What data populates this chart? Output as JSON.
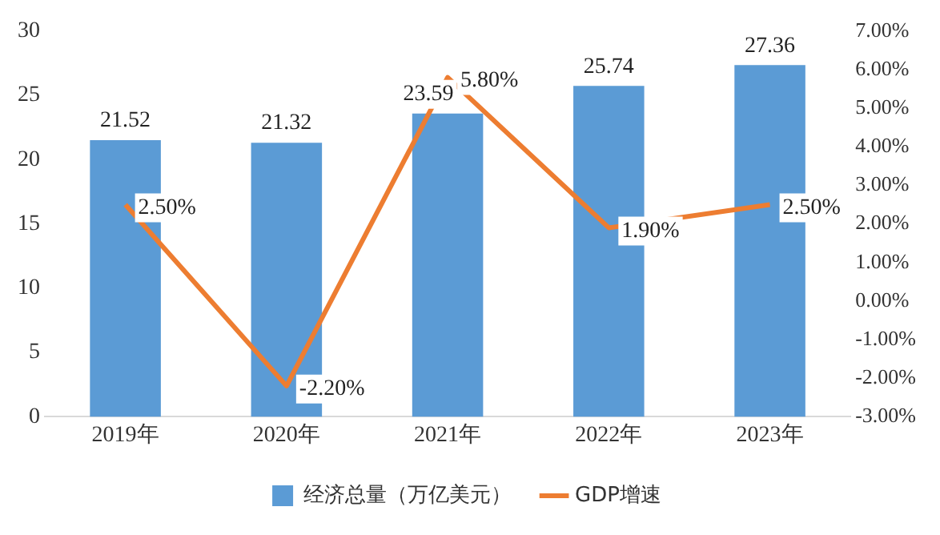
{
  "chart_data": {
    "type": "bar",
    "categories": [
      "2019年",
      "2020年",
      "2021年",
      "2022年",
      "2023年"
    ],
    "series": [
      {
        "name": "经济总量（万亿美元）",
        "color": "#5b9bd5",
        "values": [
          21.52,
          21.32,
          23.59,
          25.74,
          27.36
        ]
      },
      {
        "name": "GDP增速",
        "type": "line",
        "axis": "y2",
        "color": "#ed7d31",
        "values": [
          2.5,
          -2.2,
          5.8,
          1.9,
          2.5
        ],
        "value_labels": [
          "2.50%",
          "-2.20%",
          "5.80%",
          "1.90%",
          "2.50%"
        ]
      }
    ],
    "data_labels": true,
    "ylim": [
      0,
      30
    ],
    "yticks": [
      0,
      5,
      10,
      15,
      20,
      25,
      30
    ],
    "y2lim": [
      -3,
      7
    ],
    "y2ticks": [
      {
        "value": -3,
        "label": "-3.00%"
      },
      {
        "value": -2,
        "label": "-2.00%"
      },
      {
        "value": -1,
        "label": "-1.00%"
      },
      {
        "value": 0,
        "label": "0.00%"
      },
      {
        "value": 1,
        "label": "1.00%"
      },
      {
        "value": 2,
        "label": "2.00%"
      },
      {
        "value": 3,
        "label": "3.00%"
      },
      {
        "value": 4,
        "label": "4.00%"
      },
      {
        "value": 5,
        "label": "5.00%"
      },
      {
        "value": 6,
        "label": "6.00%"
      },
      {
        "value": 7,
        "label": "7.00%"
      }
    ],
    "legend": "bottom",
    "marker": "none",
    "line_style": "solid"
  }
}
